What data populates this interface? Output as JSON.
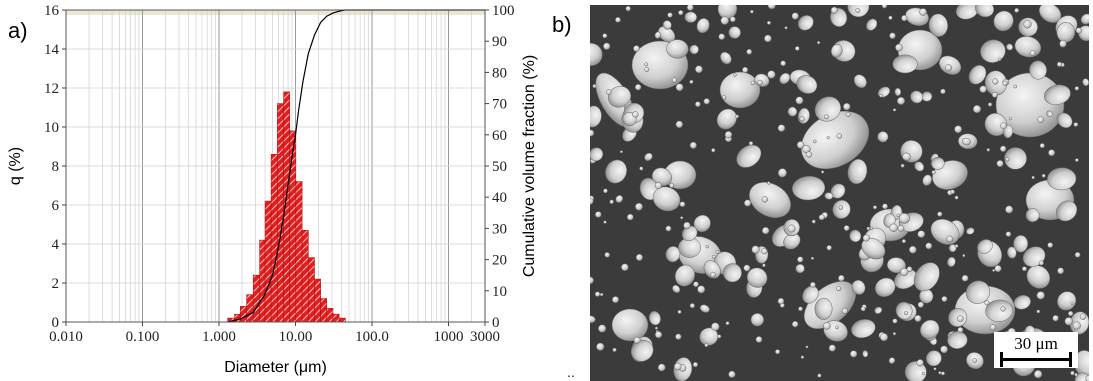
{
  "panel_a_label": "a)",
  "panel_b_label": "b)",
  "stray_mark": "..",
  "scalebar_label": "30 μm",
  "colors": {
    "bar_fill": "#e02020",
    "hatch": "#ffffff",
    "cumulative_line": "#000000",
    "top_band": "#e9e6d2",
    "sem_background": "#3b3b3b",
    "particle": "#d8d8d8"
  },
  "icons": {
    "sem_image": "sem-micrograph"
  },
  "chart_data": {
    "type": "bar",
    "xscale": "log",
    "xlabel": "Diameter (μm)",
    "ylabel": "q (%)",
    "y2label": "Cumulative volume fraction (%)",
    "xlim": [
      0.01,
      3000
    ],
    "ylim": [
      0,
      16
    ],
    "y2lim": [
      0,
      100
    ],
    "x_ticks": [
      "0.010",
      "0.100",
      "1.000",
      "10.00",
      "100.0",
      "1000",
      "3000"
    ],
    "x_tick_values": [
      0.01,
      0.1,
      1,
      10,
      100,
      1000,
      3000
    ],
    "y_ticks": [
      "0",
      "2",
      "4",
      "6",
      "8",
      "10",
      "12",
      "14",
      "16"
    ],
    "y_tick_values": [
      0,
      2,
      4,
      6,
      8,
      10,
      12,
      14,
      16
    ],
    "y2_ticks": [
      "0",
      "10",
      "20",
      "30",
      "40",
      "50",
      "60",
      "70",
      "80",
      "90",
      "100"
    ],
    "y2_tick_values": [
      0,
      10,
      20,
      30,
      40,
      50,
      60,
      70,
      80,
      90,
      100
    ],
    "grid": true,
    "histogram": {
      "edges": [
        1.3,
        1.6,
        1.9,
        2.3,
        2.8,
        3.4,
        4.0,
        4.8,
        5.8,
        7.0,
        8.4,
        10.1,
        12.2,
        14.7,
        17.7,
        21.3,
        25.6,
        30.9,
        37.2,
        44.8
      ],
      "values": [
        0.2,
        0.4,
        0.8,
        1.4,
        2.4,
        4.2,
        6.2,
        8.6,
        11.2,
        11.8,
        9.8,
        7.2,
        4.7,
        3.3,
        2.2,
        1.2,
        0.7,
        0.4,
        0.2
      ]
    },
    "cumulative": {
      "x": [
        1.3,
        1.9,
        2.8,
        4.0,
        5.0,
        6.0,
        7.0,
        8.0,
        9.0,
        10.0,
        11.0,
        12.5,
        14.7,
        17.7,
        21.3,
        25.6,
        30.9,
        37.2,
        44.8,
        60.0,
        3000
      ],
      "y": [
        0,
        1,
        3,
        9,
        15,
        24,
        34,
        44,
        53,
        60,
        68,
        77,
        86,
        92,
        96,
        98,
        99,
        99.6,
        100,
        100,
        100
      ]
    }
  }
}
